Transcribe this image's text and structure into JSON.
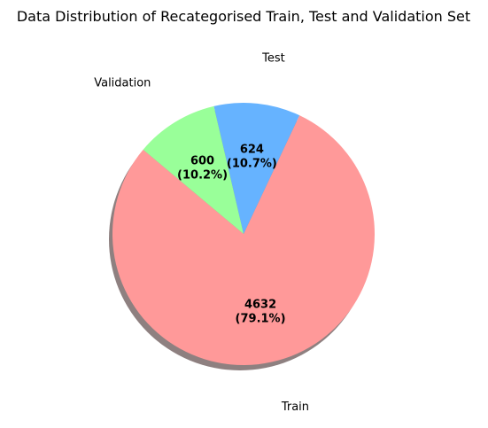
{
  "chart_data": {
    "type": "pie",
    "title": "Data Distribution of Recategorised Train, Test and Validation Set",
    "slices": [
      {
        "label": "Train",
        "value": 4632,
        "percent_text": "(79.1%)",
        "value_text": "4632",
        "color": "#ff9999"
      },
      {
        "label": "Test",
        "value": 624,
        "percent_text": "(10.7%)",
        "value_text": "624",
        "color": "#66b3ff"
      },
      {
        "label": "Validation",
        "value": 600,
        "percent_text": "(10.2%)",
        "value_text": "600",
        "color": "#99ff99"
      }
    ],
    "start_angle_deg": 140,
    "shadow": true,
    "legend": "none"
  }
}
